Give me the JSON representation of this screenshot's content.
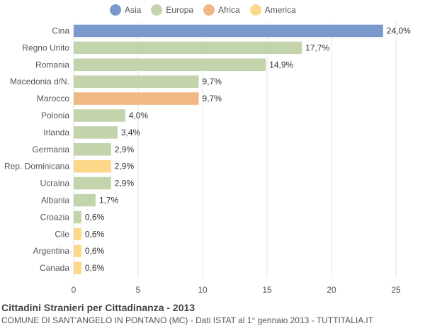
{
  "legend": [
    {
      "name": "Asia",
      "color": "#7b9acc"
    },
    {
      "name": "Europa",
      "color": "#c3d4ad"
    },
    {
      "name": "Africa",
      "color": "#f0b885"
    },
    {
      "name": "America",
      "color": "#fdd88a"
    }
  ],
  "footer": {
    "title": "Cittadini Stranieri per Cittadinanza - 2013",
    "subtitle": "COMUNE DI SANT'ANGELO IN PONTANO (MC) - Dati ISTAT al 1° gennaio 2013 - TUTTITALIA.IT"
  },
  "chart_data": {
    "type": "bar",
    "orientation": "horizontal",
    "categories": [
      "Cina",
      "Regno Unito",
      "Romania",
      "Macedonia d/N.",
      "Marocco",
      "Polonia",
      "Irlanda",
      "Germania",
      "Rep. Dominicana",
      "Ucraina",
      "Albania",
      "Croazia",
      "Cile",
      "Argentina",
      "Canada"
    ],
    "values": [
      24.0,
      17.7,
      14.9,
      9.7,
      9.7,
      4.0,
      3.4,
      2.9,
      2.9,
      2.9,
      1.7,
      0.6,
      0.6,
      0.6,
      0.6
    ],
    "value_labels": [
      "24,0%",
      "17,7%",
      "14,9%",
      "9,7%",
      "9,7%",
      "4,0%",
      "3,4%",
      "2,9%",
      "2,9%",
      "2,9%",
      "1,7%",
      "0,6%",
      "0,6%",
      "0,6%",
      "0,6%"
    ],
    "groups": [
      "Asia",
      "Europa",
      "Europa",
      "Europa",
      "Africa",
      "Europa",
      "Europa",
      "Europa",
      "America",
      "Europa",
      "Europa",
      "Europa",
      "America",
      "America",
      "America"
    ],
    "xlim": [
      0,
      25
    ],
    "xticks": [
      0,
      5,
      10,
      15,
      20,
      25
    ],
    "grid": true,
    "legend_position": "top"
  }
}
